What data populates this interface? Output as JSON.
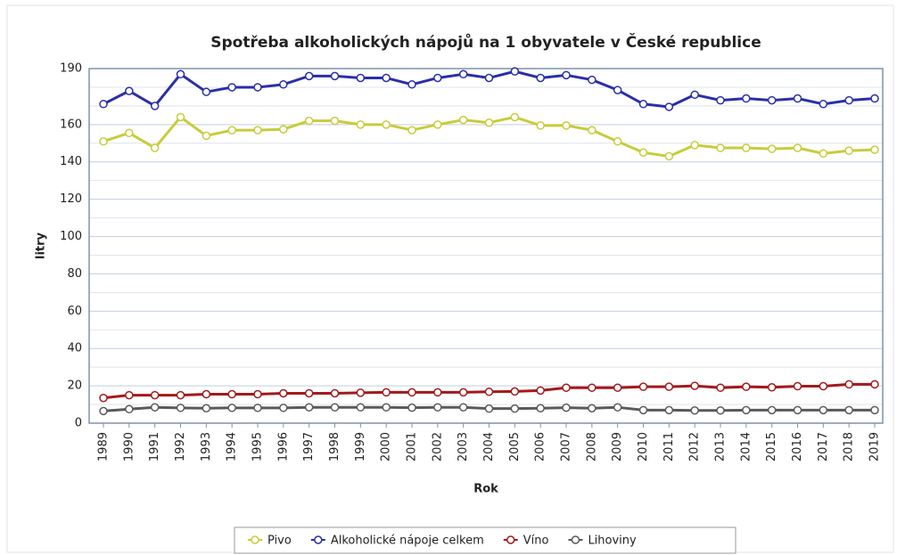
{
  "chart_data": {
    "type": "line",
    "title": "Spotřeba alkoholických nápojů na 1 obyvatele v České republice",
    "xlabel": "Rok",
    "ylabel": "litry",
    "categories": [
      "1989",
      "1990",
      "1991",
      "1992",
      "1993",
      "1994",
      "1995",
      "1996",
      "1997",
      "1998",
      "1999",
      "2000",
      "2001",
      "2002",
      "2003",
      "2004",
      "2005",
      "2006",
      "2007",
      "2008",
      "2009",
      "2010",
      "2011",
      "2012",
      "2013",
      "2014",
      "2015",
      "2016",
      "2017",
      "2018",
      "2019"
    ],
    "ylim": [
      0,
      190
    ],
    "yticks": [
      0,
      20,
      40,
      60,
      80,
      100,
      120,
      140,
      160,
      190
    ],
    "grid": true,
    "grid_step": 10,
    "legend": "bottom",
    "series": [
      {
        "name": "Pivo",
        "color": "#c8cc3a",
        "values": [
          151,
          155.5,
          147.5,
          164,
          154,
          157,
          157,
          157.5,
          162,
          162,
          160,
          160,
          157,
          160,
          162.5,
          161,
          164,
          159.5,
          159.5,
          157,
          151,
          145,
          143,
          149,
          147.5,
          147.5,
          147,
          147.5,
          144.5,
          146,
          146.5
        ]
      },
      {
        "name": "Alkoholické nápoje celkem",
        "color": "#2b2ea8",
        "values": [
          171,
          178,
          170,
          187,
          177.5,
          180,
          180,
          181.5,
          186,
          186,
          185,
          185,
          181.5,
          185,
          187,
          185,
          188.5,
          185,
          186.5,
          184,
          178.5,
          171,
          169.5,
          176,
          173,
          174,
          173,
          174,
          171,
          173,
          174
        ]
      },
      {
        "name": "Víno",
        "color": "#a3191c",
        "values": [
          13.5,
          15,
          15,
          15,
          15.5,
          15.5,
          15.5,
          16,
          16,
          16,
          16.3,
          16.5,
          16.5,
          16.5,
          16.5,
          16.8,
          17,
          17.5,
          19,
          19,
          19,
          19.5,
          19.5,
          20,
          19,
          19.5,
          19.2,
          19.8,
          19.8,
          20.8,
          20.8
        ]
      },
      {
        "name": "Lihoviny",
        "color": "#5a5a5a",
        "values": [
          6.5,
          7.5,
          8.5,
          8.2,
          8,
          8.2,
          8.2,
          8.2,
          8.5,
          8.5,
          8.5,
          8.5,
          8.3,
          8.5,
          8.5,
          7.8,
          7.8,
          8,
          8.3,
          8,
          8.5,
          7,
          7,
          6.8,
          6.8,
          7,
          7,
          7,
          7,
          7,
          7
        ]
      }
    ]
  }
}
